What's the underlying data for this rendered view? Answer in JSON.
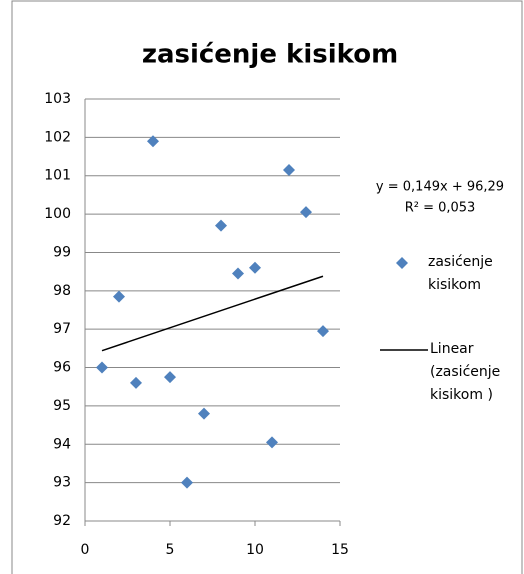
{
  "chart_data": {
    "type": "scatter",
    "title": "zasićenje kisikom",
    "x": [
      1,
      2,
      3,
      4,
      5,
      6,
      7,
      8,
      9,
      10,
      11,
      12,
      13,
      14
    ],
    "series": [
      {
        "name": "zasićenje kisikom",
        "color": "#4f81bd",
        "values": [
          96.0,
          97.85,
          95.6,
          101.9,
          95.75,
          93.0,
          94.8,
          99.7,
          98.45,
          98.6,
          94.05,
          101.15,
          100.05,
          96.95
        ]
      }
    ],
    "trendline": {
      "name": "Linear (zasićenje kisikom )",
      "color": "#000000",
      "x": [
        1,
        14
      ],
      "values": [
        96.44,
        98.38
      ],
      "equation": "y = 0,149x + 96,29",
      "r_squared": "R² = 0,053"
    },
    "xlim": [
      0,
      15
    ],
    "xticks": [
      0,
      5,
      10,
      15
    ],
    "ylim": [
      92,
      103
    ],
    "yticks": [
      92,
      93,
      94,
      95,
      96,
      97,
      98,
      99,
      100,
      101,
      102,
      103
    ],
    "grid": true
  }
}
